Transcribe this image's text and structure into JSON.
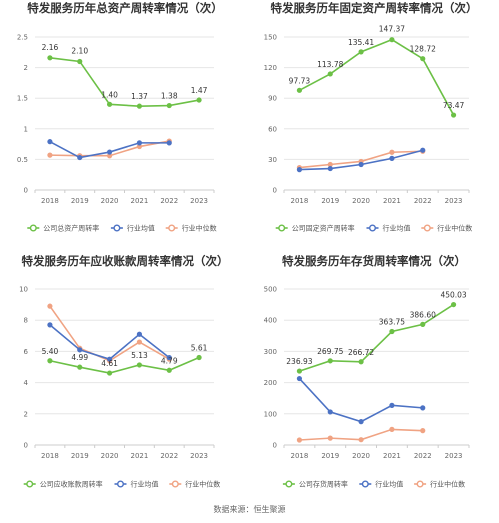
{
  "colors": {
    "company": "#6cc046",
    "industry_mean": "#4c72c4",
    "industry_median": "#f0a383",
    "grid": "#e6e6e6",
    "axis": "#cccccc"
  },
  "footer": "数据来源：恒生聚源",
  "chart_data": [
    {
      "type": "line",
      "title": "特发服务历年总资产周转率情况（次）",
      "x": [
        "2018",
        "2019",
        "2020",
        "2021",
        "2022",
        "2023"
      ],
      "ylim": [
        0,
        2.5
      ],
      "yticks": [
        "0",
        "0.5",
        "1",
        "1.5",
        "2",
        "2.5"
      ],
      "grid": true,
      "legend_position": "bottom",
      "series": [
        {
          "name": "公司总资产周转率",
          "values": [
            2.16,
            2.1,
            1.4,
            1.37,
            1.38,
            1.47
          ],
          "labels": [
            "2.16",
            "2.10",
            "1.40",
            "1.37",
            "1.38",
            "1.47"
          ]
        },
        {
          "name": "行业均值",
          "values": [
            0.79,
            0.53,
            0.62,
            0.77,
            0.77,
            null
          ]
        },
        {
          "name": "行业中位数",
          "values": [
            0.57,
            0.56,
            0.56,
            0.71,
            0.8,
            null
          ]
        }
      ]
    },
    {
      "type": "line",
      "title": "特发服务历年固定资产周转率情况（次）",
      "x": [
        "2018",
        "2019",
        "2020",
        "2021",
        "2022",
        "2023"
      ],
      "ylim": [
        0,
        150
      ],
      "yticks": [
        "0",
        "30",
        "60",
        "90",
        "120",
        "150"
      ],
      "grid": true,
      "legend_position": "bottom",
      "series": [
        {
          "name": "公司固定资产周转率",
          "values": [
            97.73,
            113.78,
            135.41,
            147.37,
            128.72,
            73.47
          ],
          "labels": [
            "97.73",
            "113.78",
            "135.41",
            "147.37",
            "128.72",
            "73.47"
          ]
        },
        {
          "name": "行业均值",
          "values": [
            20,
            21,
            25,
            31,
            39,
            null
          ]
        },
        {
          "name": "行业中位数",
          "values": [
            22,
            25,
            28,
            37,
            38,
            null
          ]
        }
      ]
    },
    {
      "type": "line",
      "title": "特发服务历年应收账款周转率情况（次）",
      "x": [
        "2018",
        "2019",
        "2020",
        "2021",
        "2022",
        "2023"
      ],
      "ylim": [
        0,
        10
      ],
      "yticks": [
        "0",
        "2",
        "4",
        "6",
        "8",
        "10"
      ],
      "grid": true,
      "legend_position": "bottom",
      "series": [
        {
          "name": "公司应收账款周转率",
          "values": [
            5.4,
            4.99,
            4.61,
            5.13,
            4.79,
            5.61
          ],
          "labels": [
            "5.40",
            "4.99",
            "4.61",
            "5.13",
            "4.79",
            "5.61"
          ]
        },
        {
          "name": "行业均值",
          "values": [
            7.7,
            6.1,
            5.5,
            7.1,
            5.6,
            null
          ]
        },
        {
          "name": "行业中位数",
          "values": [
            8.9,
            6.2,
            5.4,
            6.6,
            5.5,
            null
          ]
        }
      ]
    },
    {
      "type": "line",
      "title": "特发服务历年存货周转率情况（次）",
      "x": [
        "2018",
        "2019",
        "2020",
        "2021",
        "2022",
        "2023"
      ],
      "ylim": [
        0,
        500
      ],
      "yticks": [
        "0",
        "100",
        "200",
        "300",
        "400",
        "500"
      ],
      "grid": true,
      "legend_position": "bottom",
      "series": [
        {
          "name": "公司存货周转率",
          "values": [
            236.93,
            269.75,
            266.72,
            363.75,
            386.6,
            450.03
          ],
          "labels": [
            "236.93",
            "269.75",
            "266.72",
            "363.75",
            "386.60",
            "450.03"
          ]
        },
        {
          "name": "行业均值",
          "values": [
            213,
            106,
            75,
            127,
            119,
            null
          ]
        },
        {
          "name": "行业中位数",
          "values": [
            16,
            22,
            17,
            50,
            46,
            null
          ]
        }
      ]
    }
  ]
}
